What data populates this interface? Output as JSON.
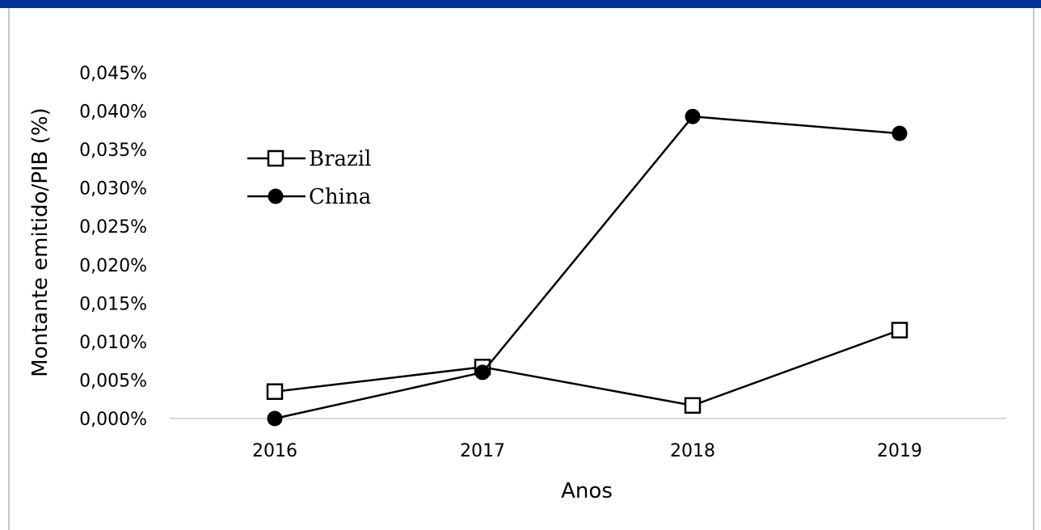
{
  "colors": {
    "top_bar": "#003399",
    "line": "#000000",
    "axis": "#d9d9d9",
    "frame": "#c8c8c8"
  },
  "chart_data": {
    "type": "line",
    "title": "",
    "xlabel": "Anos",
    "ylabel": "Montante emitido/PIB (%)",
    "categories": [
      "2016",
      "2017",
      "2018",
      "2019"
    ],
    "ylim": [
      0,
      0.045
    ],
    "yticks": [
      0,
      0.005,
      0.01,
      0.015,
      0.02,
      0.025,
      0.03,
      0.035,
      0.04,
      0.045
    ],
    "ytick_labels": [
      "0,000%",
      "0,005%",
      "0,010%",
      "0,015%",
      "0,020%",
      "0,025%",
      "0,030%",
      "0,035%",
      "0,040%",
      "0,045%"
    ],
    "grid": false,
    "legend_position": "upper-left",
    "series": [
      {
        "name": "Brazil",
        "marker": "open-square",
        "values": [
          0.0035,
          0.0067,
          0.0017,
          0.0115
        ]
      },
      {
        "name": "China",
        "marker": "filled-circle",
        "values": [
          0.0,
          0.006,
          0.0393,
          0.0371
        ]
      }
    ]
  }
}
